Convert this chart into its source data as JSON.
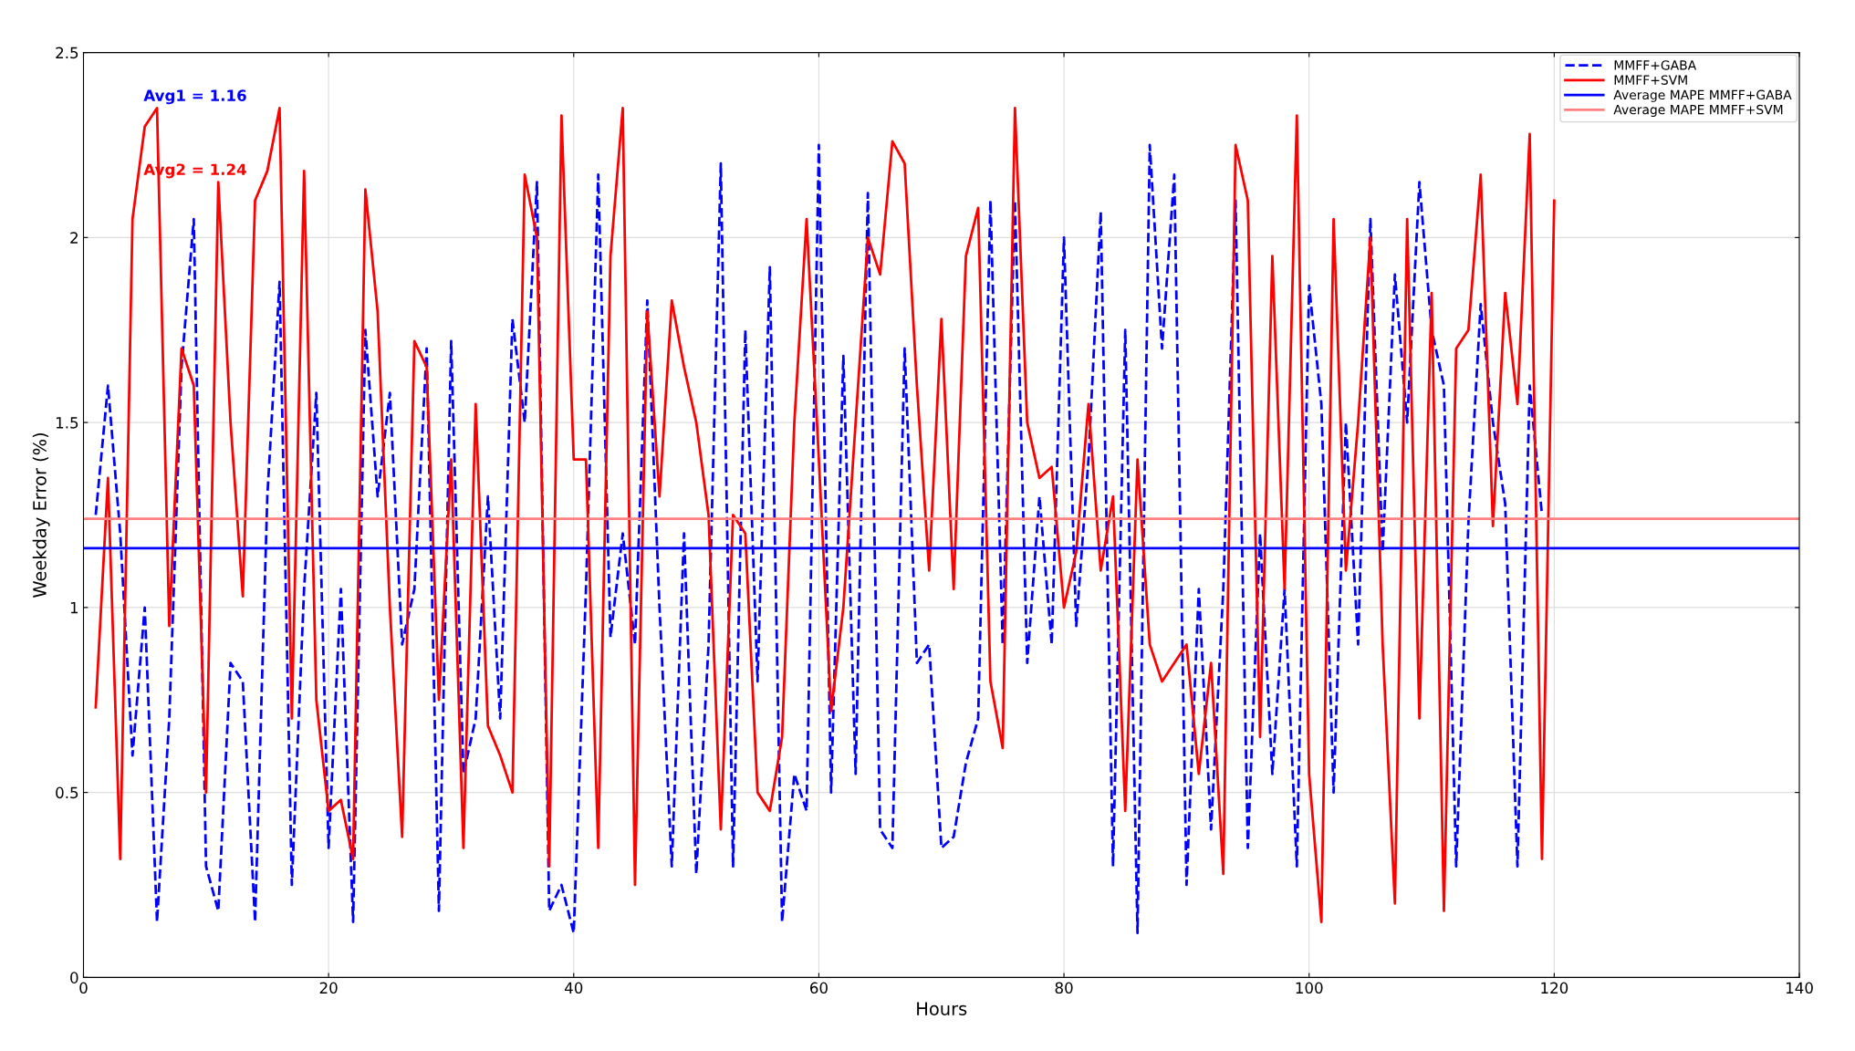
{
  "chart_data": {
    "type": "line",
    "xlabel": "Hours",
    "ylabel": "Weekday Error (%)",
    "x": [
      1,
      2,
      3,
      4,
      5,
      6,
      7,
      8,
      9,
      10,
      11,
      12,
      13,
      14,
      15,
      16,
      17,
      18,
      19,
      20,
      21,
      22,
      23,
      24,
      25,
      26,
      27,
      28,
      29,
      30,
      31,
      32,
      33,
      34,
      35,
      36,
      37,
      38,
      39,
      40,
      41,
      42,
      43,
      44,
      45,
      46,
      47,
      48,
      49,
      50,
      51,
      52,
      53,
      54,
      55,
      56,
      57,
      58,
      59,
      60,
      61,
      62,
      63,
      64,
      65,
      66,
      67,
      68,
      69,
      70,
      71,
      72,
      73,
      74,
      75,
      76,
      77,
      78,
      79,
      80,
      81,
      82,
      83,
      84,
      85,
      86,
      87,
      88,
      89,
      90,
      91,
      92,
      93,
      94,
      95,
      96,
      97,
      98,
      99,
      100,
      101,
      102,
      103,
      104,
      105,
      106,
      107,
      108,
      109,
      110,
      111,
      112,
      113,
      114,
      115,
      116,
      117,
      118,
      119,
      120
    ],
    "series": [
      {
        "name": "MMFF+GABA",
        "color": "#0000ff",
        "line_style": "dashed",
        "values": [
          1.25,
          1.6,
          1.2,
          0.6,
          1.0,
          0.15,
          0.7,
          1.65,
          2.05,
          0.3,
          0.18,
          0.85,
          0.8,
          0.15,
          1.3,
          1.88,
          0.25,
          1.05,
          1.58,
          0.35,
          1.05,
          0.15,
          1.75,
          1.3,
          1.58,
          0.9,
          1.05,
          1.7,
          0.18,
          1.72,
          0.55,
          0.7,
          1.3,
          0.7,
          1.78,
          1.5,
          2.15,
          0.18,
          0.25,
          0.12,
          1.05,
          2.17,
          0.92,
          1.2,
          0.9,
          1.83,
          1.0,
          0.3,
          1.2,
          0.28,
          0.9,
          2.2,
          0.3,
          1.75,
          0.8,
          1.92,
          0.15,
          0.55,
          0.45,
          2.25,
          0.5,
          1.68,
          0.55,
          2.12,
          0.4,
          0.35,
          1.7,
          0.85,
          0.9,
          0.35,
          0.38,
          0.58,
          0.7,
          2.1,
          0.9,
          2.1,
          0.85,
          1.3,
          0.9,
          2.0,
          0.95,
          1.4,
          2.07,
          0.3,
          1.75,
          0.12,
          2.25,
          1.7,
          2.17,
          0.25,
          1.05,
          0.4,
          1.05,
          2.1,
          0.35,
          1.2,
          0.55,
          1.05,
          0.3,
          1.87,
          1.55,
          0.5,
          1.5,
          0.9,
          2.05,
          1.15,
          1.9,
          1.5,
          2.15,
          1.75,
          1.6,
          0.3,
          1.23,
          1.82,
          1.5,
          1.28,
          0.3,
          1.6,
          1.25,
          null
        ]
      },
      {
        "name": "MMFF+SVM",
        "color": "#ff0000",
        "line_style": "solid",
        "values": [
          0.73,
          1.35,
          0.32,
          2.05,
          2.3,
          2.35,
          0.95,
          1.7,
          1.6,
          0.5,
          2.15,
          1.5,
          1.03,
          2.1,
          2.18,
          2.35,
          0.7,
          2.18,
          0.75,
          0.45,
          0.48,
          0.32,
          2.13,
          1.8,
          1.0,
          0.38,
          1.72,
          1.65,
          0.75,
          1.4,
          0.35,
          1.55,
          0.68,
          0.6,
          0.5,
          2.17,
          2.0,
          0.3,
          2.33,
          1.4,
          1.4,
          0.35,
          1.95,
          2.35,
          0.25,
          1.8,
          1.3,
          1.83,
          1.65,
          1.5,
          1.25,
          0.4,
          1.25,
          1.2,
          0.5,
          0.45,
          0.65,
          1.5,
          2.05,
          1.4,
          0.72,
          1.0,
          1.5,
          2.0,
          1.9,
          2.26,
          2.2,
          1.6,
          1.1,
          1.78,
          1.05,
          1.95,
          2.08,
          0.8,
          0.62,
          2.35,
          1.5,
          1.35,
          1.38,
          1.0,
          1.15,
          1.55,
          1.1,
          1.3,
          0.45,
          1.4,
          0.9,
          0.8,
          0.85,
          0.9,
          0.55,
          0.85,
          0.28,
          2.25,
          2.1,
          0.65,
          1.95,
          1.05,
          2.33,
          0.55,
          0.15,
          2.05,
          1.1,
          1.5,
          2.0,
          0.9,
          0.2,
          2.05,
          0.7,
          1.85,
          0.18,
          1.7,
          1.75,
          2.17,
          1.22,
          1.85,
          1.55,
          2.28,
          0.32,
          2.1
        ]
      }
    ],
    "ref_lines": [
      {
        "axis": "y",
        "value": 1.16,
        "label": "Average MAPE MMFF+GABA",
        "color": "#0000ff"
      },
      {
        "axis": "y",
        "value": 1.24,
        "label": "Average MAPE MMFF+SVM",
        "color": "#ff8080"
      }
    ],
    "annotations": [
      "Avg1 = 1.16",
      "Avg2 = 1.24"
    ],
    "xlim": [
      0,
      140
    ],
    "xticks": [
      0,
      20,
      40,
      60,
      80,
      100,
      120,
      140
    ],
    "ylim": [
      0,
      2.5
    ],
    "yticks": [
      0,
      0.5,
      1,
      1.5,
      2,
      2.5
    ],
    "grid": true,
    "legend": "top right"
  }
}
